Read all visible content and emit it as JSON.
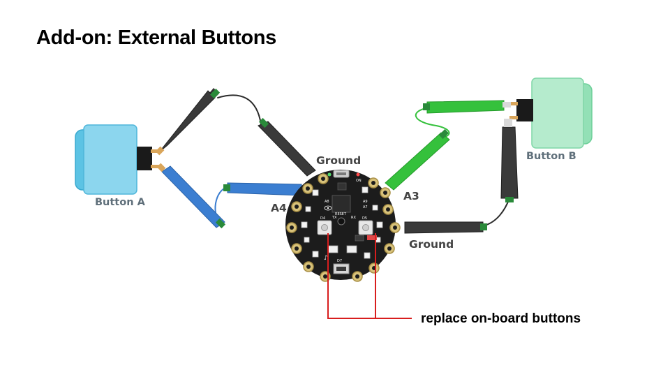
{
  "slide": {
    "title": "Add-on: External Buttons"
  },
  "labels": {
    "ground_top": "Ground",
    "ground_right": "Ground",
    "pin_a4": "A4",
    "pin_a3": "A3",
    "button_a": "Button A",
    "button_b": "Button B",
    "callout": "replace on-board buttons"
  },
  "board_silkscreen": {
    "d4": "D4",
    "d5": "D5",
    "tx": "TX",
    "rx": "RX",
    "reset": "RESET",
    "d7": "D7",
    "a9": "A9",
    "a8": "A8",
    "a7": "A7",
    "on": "ON"
  },
  "colors": {
    "button_a": "#7fd0ea",
    "button_b": "#a8e6c2",
    "wire_black": "#2b2b2b",
    "wire_blue": "#3b7ed1",
    "wire_green": "#35c13c",
    "callout_line": "#d81e1e",
    "board": "#1c1c1c"
  },
  "icons": {
    "button_a": "arcade-button-icon",
    "button_b": "arcade-button-icon",
    "board": "circuit-playground-board-icon",
    "clip": "alligator-clip-icon"
  }
}
